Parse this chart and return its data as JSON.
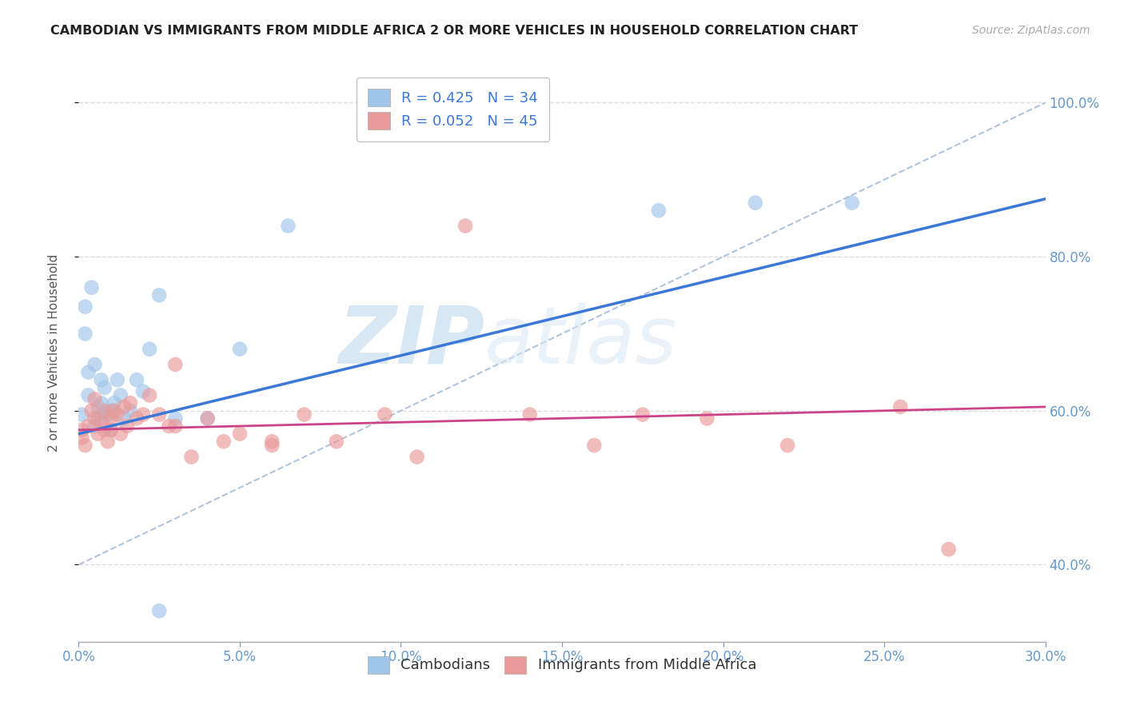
{
  "title": "CAMBODIAN VS IMMIGRANTS FROM MIDDLE AFRICA 2 OR MORE VEHICLES IN HOUSEHOLD CORRELATION CHART",
  "source": "Source: ZipAtlas.com",
  "ylabel": "2 or more Vehicles in Household",
  "legend_label1": "R = 0.425   N = 34",
  "legend_label2": "R = 0.052   N = 45",
  "legend_name1": "Cambodians",
  "legend_name2": "Immigrants from Middle Africa",
  "color_blue": "#9fc5e8",
  "color_pink": "#ea9999",
  "line_color_blue": "#3c78d8",
  "line_color_pink": "#cc4488",
  "dashed_line_color": "#b0c4de",
  "watermark_zip": "ZIP",
  "watermark_atlas": "atlas",
  "blue_points_x": [
    0.001,
    0.002,
    0.002,
    0.003,
    0.003,
    0.004,
    0.005,
    0.005,
    0.006,
    0.006,
    0.007,
    0.007,
    0.008,
    0.008,
    0.009,
    0.01,
    0.01,
    0.011,
    0.012,
    0.013,
    0.014,
    0.016,
    0.018,
    0.02,
    0.022,
    0.025,
    0.03,
    0.04,
    0.05,
    0.065,
    0.18,
    0.21,
    0.24,
    0.025
  ],
  "blue_points_y": [
    0.595,
    0.735,
    0.7,
    0.65,
    0.62,
    0.76,
    0.66,
    0.58,
    0.59,
    0.605,
    0.61,
    0.64,
    0.63,
    0.595,
    0.595,
    0.6,
    0.575,
    0.61,
    0.64,
    0.62,
    0.59,
    0.6,
    0.64,
    0.625,
    0.68,
    0.75,
    0.59,
    0.59,
    0.68,
    0.84,
    0.86,
    0.87,
    0.87,
    0.34
  ],
  "pink_points_x": [
    0.001,
    0.001,
    0.002,
    0.003,
    0.004,
    0.005,
    0.005,
    0.006,
    0.007,
    0.008,
    0.008,
    0.009,
    0.01,
    0.01,
    0.011,
    0.012,
    0.013,
    0.014,
    0.015,
    0.016,
    0.018,
    0.02,
    0.022,
    0.025,
    0.028,
    0.03,
    0.035,
    0.04,
    0.045,
    0.05,
    0.06,
    0.07,
    0.08,
    0.095,
    0.105,
    0.12,
    0.14,
    0.16,
    0.175,
    0.195,
    0.22,
    0.255,
    0.03,
    0.06,
    0.27
  ],
  "pink_points_y": [
    0.575,
    0.565,
    0.555,
    0.58,
    0.6,
    0.59,
    0.615,
    0.57,
    0.585,
    0.575,
    0.6,
    0.56,
    0.575,
    0.59,
    0.6,
    0.595,
    0.57,
    0.605,
    0.58,
    0.61,
    0.59,
    0.595,
    0.62,
    0.595,
    0.58,
    0.58,
    0.54,
    0.59,
    0.56,
    0.57,
    0.56,
    0.595,
    0.56,
    0.595,
    0.54,
    0.84,
    0.595,
    0.555,
    0.595,
    0.59,
    0.555,
    0.605,
    0.66,
    0.555,
    0.42
  ],
  "xlim": [
    0.0,
    0.3
  ],
  "ylim": [
    0.3,
    1.05
  ],
  "y_ticks": [
    0.4,
    0.6,
    0.8,
    1.0
  ],
  "x_ticks": [
    0.0,
    0.05,
    0.1,
    0.15,
    0.2,
    0.25,
    0.3
  ],
  "blue_trend_x": [
    0.0,
    0.3
  ],
  "blue_trend_y": [
    0.57,
    0.875
  ],
  "pink_trend_x": [
    0.0,
    0.3
  ],
  "pink_trend_y": [
    0.575,
    0.605
  ],
  "dashed_trend_x": [
    0.0,
    0.3
  ],
  "dashed_trend_y": [
    0.4,
    1.0
  ]
}
